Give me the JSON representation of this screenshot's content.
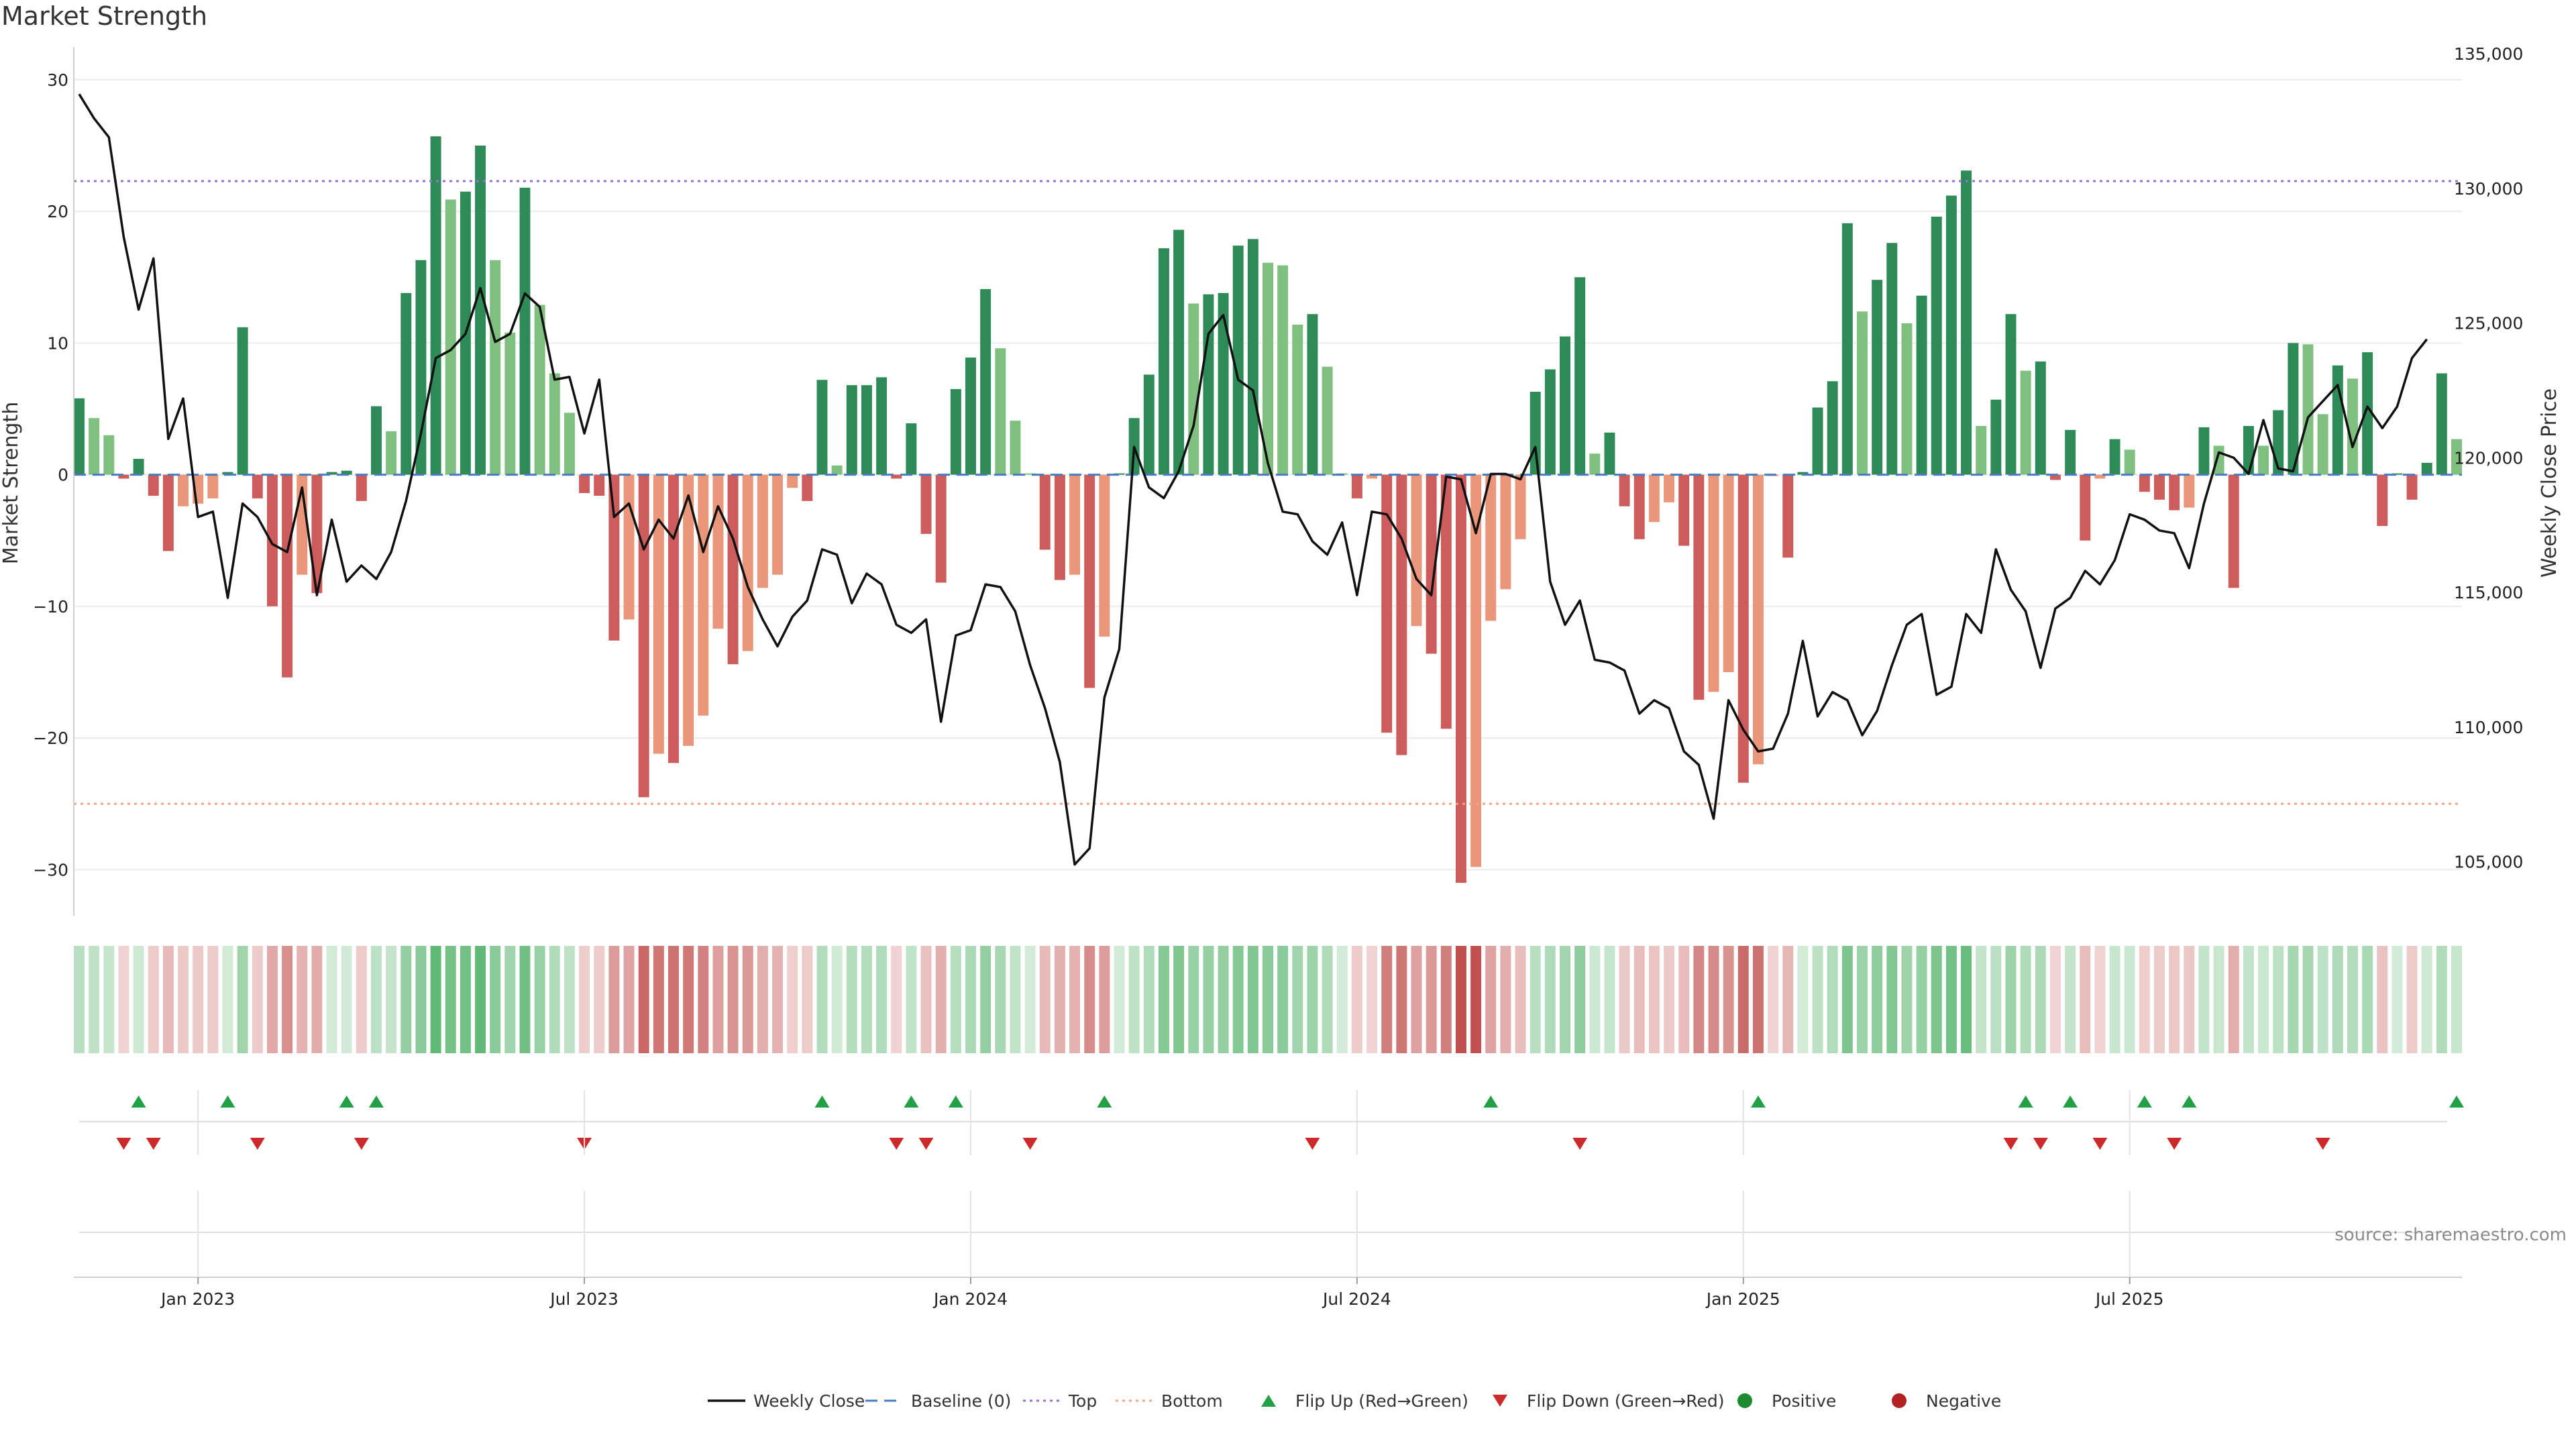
{
  "title": "Market Strength",
  "source": "source: sharemaestro.com",
  "colors": {
    "strong_green": "#2e8b57",
    "light_green": "#7fbf7f",
    "strong_red": "#cd5c5c",
    "light_red": "#e9967a",
    "line": "#111111",
    "baseline": "#4a7bbf",
    "top": "#9370db",
    "bottom": "#f4a582",
    "flip_up": "#21a045",
    "flip_down": "#cc2a2a",
    "positive": "#1e8a30",
    "negative": "#b22222"
  },
  "chart_data": {
    "type": "bar",
    "title": "Market Strength",
    "ylabel_left": "Market Strength",
    "ylabel_right": "Weekly Close Price",
    "ylim_left": [
      -33.5,
      33
    ],
    "ylim_right": [
      103000,
      135500
    ],
    "yticks_left": [
      30,
      20,
      10,
      0,
      -10,
      -20,
      -30
    ],
    "yticks_left_labels": [
      "30",
      "20",
      "10",
      "0",
      "−10",
      "−20",
      "−30"
    ],
    "yticks_right": [
      135000,
      130000,
      125000,
      120000,
      115000,
      110000,
      105000
    ],
    "yticks_right_labels": [
      "135,000",
      "130,000",
      "125,000",
      "120,000",
      "115,000",
      "110,000",
      "105,000"
    ],
    "xticks": [
      {
        "index": 8,
        "label": "Jan 2023"
      },
      {
        "index": 34,
        "label": "Jul 2023"
      },
      {
        "index": 60,
        "label": "Jan 2024"
      },
      {
        "index": 86,
        "label": "Jul 2024"
      },
      {
        "index": 112,
        "label": "Jan 2025"
      },
      {
        "index": 138,
        "label": "Jul 2025"
      }
    ],
    "top_level": 22.3,
    "bottom_level": -25,
    "strength": [
      5.8,
      4.3,
      3.0,
      -0.3,
      1.2,
      -1.6,
      -5.8,
      -2.4,
      -2.2,
      -1.8,
      0.2,
      11.2,
      -1.8,
      -10.0,
      -15.4,
      -7.6,
      -9.0,
      0.2,
      0.3,
      -2.0,
      5.2,
      3.3,
      13.8,
      16.3,
      25.7,
      20.9,
      21.5,
      25.0,
      16.3,
      10.8,
      21.8,
      12.9,
      7.7,
      4.7,
      -1.4,
      -1.6,
      -12.6,
      -11.0,
      -24.5,
      -21.2,
      -21.9,
      -20.6,
      -18.3,
      -11.7,
      -14.4,
      -13.4,
      -8.6,
      -7.6,
      -1.0,
      -2.0,
      7.2,
      0.7,
      6.8,
      6.8,
      7.4,
      -0.3,
      3.9,
      -4.5,
      -8.2,
      6.5,
      8.9,
      14.1,
      9.6,
      4.1,
      0.1,
      -5.7,
      -8.0,
      -7.6,
      -16.2,
      -12.3,
      0.1,
      4.3,
      7.6,
      17.2,
      18.6,
      13.0,
      13.7,
      13.8,
      17.4,
      17.9,
      16.1,
      15.9,
      11.4,
      12.2,
      8.2,
      0.1,
      -1.8,
      -0.3,
      -19.6,
      -21.3,
      -11.5,
      -13.6,
      -19.3,
      -31.0,
      -29.8,
      -11.1,
      -8.7,
      -4.9,
      6.3,
      8.0,
      10.5,
      15.0,
      1.6,
      3.2,
      -2.4,
      -4.9,
      -3.6,
      -2.1,
      -5.4,
      -17.1,
      -16.5,
      -15.0,
      -23.4,
      -22.0,
      -0.1,
      -6.3,
      0.2,
      5.1,
      7.1,
      19.1,
      12.4,
      14.8,
      17.6,
      11.5,
      13.6,
      19.6,
      21.2,
      23.1,
      3.7,
      5.7,
      12.2,
      7.9,
      8.6,
      -0.4,
      3.4,
      -5.0,
      -0.3,
      2.7,
      1.9,
      -1.3,
      -1.9,
      -2.7,
      -2.5,
      3.6,
      2.2,
      -8.6,
      3.7,
      2.2,
      4.9,
      10.0,
      9.9,
      4.6,
      8.3,
      7.3,
      9.3,
      -3.9,
      0.1,
      -1.9,
      0.9,
      7.7,
      2.7
    ],
    "series": [
      {
        "name": "Weekly Close",
        "values": [
          133500,
          132600,
          131900,
          128200,
          125500,
          127400,
          120700,
          122200,
          117800,
          118000,
          114800,
          118300,
          117800,
          116800,
          116500,
          118900,
          114900,
          117700,
          115400,
          116000,
          115500,
          116500,
          118400,
          120900,
          123700,
          124000,
          124600,
          126300,
          124300,
          124600,
          126100,
          125600,
          122900,
          123000,
          120900,
          122900,
          117800,
          118300,
          116600,
          117700,
          117000,
          118600,
          116500,
          118200,
          117000,
          115200,
          114000,
          113000,
          114100,
          114700,
          116600,
          116400,
          114600,
          115700,
          115300,
          113800,
          113500,
          114000,
          110200,
          113400,
          113600,
          115300,
          115200,
          114300,
          112300,
          110700,
          108700,
          104900,
          105500,
          111100,
          112900,
          120400,
          118900,
          118500,
          119500,
          121200,
          124600,
          125300,
          122900,
          122500,
          119800,
          118000,
          117900,
          116900,
          116400,
          117600,
          114900,
          118000,
          117900,
          117000,
          115500,
          114900,
          119300,
          119200,
          117200,
          119400,
          119400,
          119200,
          120400,
          115400,
          113800,
          114700,
          112500,
          112400,
          112100,
          110500,
          111000,
          110700,
          109100,
          108600,
          106600,
          111000,
          109900,
          109100,
          109200,
          110500,
          113200,
          110400,
          111300,
          111000,
          109700,
          110600,
          112300,
          113800,
          114200,
          111200,
          111500,
          114200,
          113500,
          116600,
          115100,
          114300,
          112200,
          114400,
          114800,
          115800,
          115300,
          116200,
          117900,
          117700,
          117300,
          117200,
          115900,
          118300,
          120200,
          120000,
          119400,
          121400,
          119600,
          119500,
          121500,
          122100,
          122700,
          120400,
          121900,
          121100,
          121900,
          123700,
          124400
        ]
      }
    ],
    "flip_up_indices": [
      4,
      10,
      18,
      20,
      50,
      56,
      59,
      69,
      95,
      113,
      131,
      134,
      139,
      142,
      160
    ],
    "flip_down_indices": [
      3,
      5,
      12,
      19,
      34,
      55,
      57,
      64,
      83,
      101,
      130,
      132,
      136,
      141,
      151
    ],
    "legend": [
      {
        "label": "Weekly Close",
        "kind": "line"
      },
      {
        "label": "Baseline (0)",
        "kind": "dash"
      },
      {
        "label": "Top",
        "kind": "dot-purple"
      },
      {
        "label": "Bottom",
        "kind": "dot-orange"
      },
      {
        "label": "Flip Up (Red→Green)",
        "kind": "tri-up"
      },
      {
        "label": "Flip Down (Green→Red)",
        "kind": "tri-down"
      },
      {
        "label": "Positive",
        "kind": "circle-green"
      },
      {
        "label": "Negative",
        "kind": "circle-red"
      }
    ]
  }
}
